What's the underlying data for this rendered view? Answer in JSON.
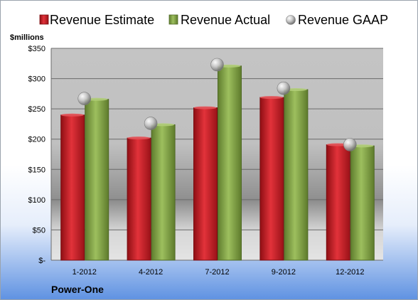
{
  "chart_data": {
    "type": "bar",
    "company": "Power-One",
    "ylabel": "$millions",
    "ylim": [
      0,
      350
    ],
    "y_ticks": [
      0,
      50,
      100,
      150,
      200,
      250,
      300,
      350
    ],
    "y_tick_labels": [
      "$-",
      "$50",
      "$100",
      "$150",
      "$200",
      "$250",
      "$300",
      "$350"
    ],
    "categories": [
      "1-2012",
      "4-2012",
      "7-2012",
      "9-2012",
      "12-2012"
    ],
    "series": [
      {
        "name": "Revenue Estimate",
        "kind": "bar",
        "color": "#d0222a",
        "values": [
          241,
          203,
          253,
          270,
          192
        ]
      },
      {
        "name": "Revenue Actual",
        "kind": "bar",
        "color": "#8cae4f",
        "values": [
          267,
          225,
          322,
          283,
          190
        ]
      },
      {
        "name": "Revenue GAAP",
        "kind": "marker",
        "color": "#b8b8b8",
        "values": [
          267,
          226,
          323,
          284,
          191
        ]
      }
    ],
    "legend_position": "top",
    "grid": true
  }
}
